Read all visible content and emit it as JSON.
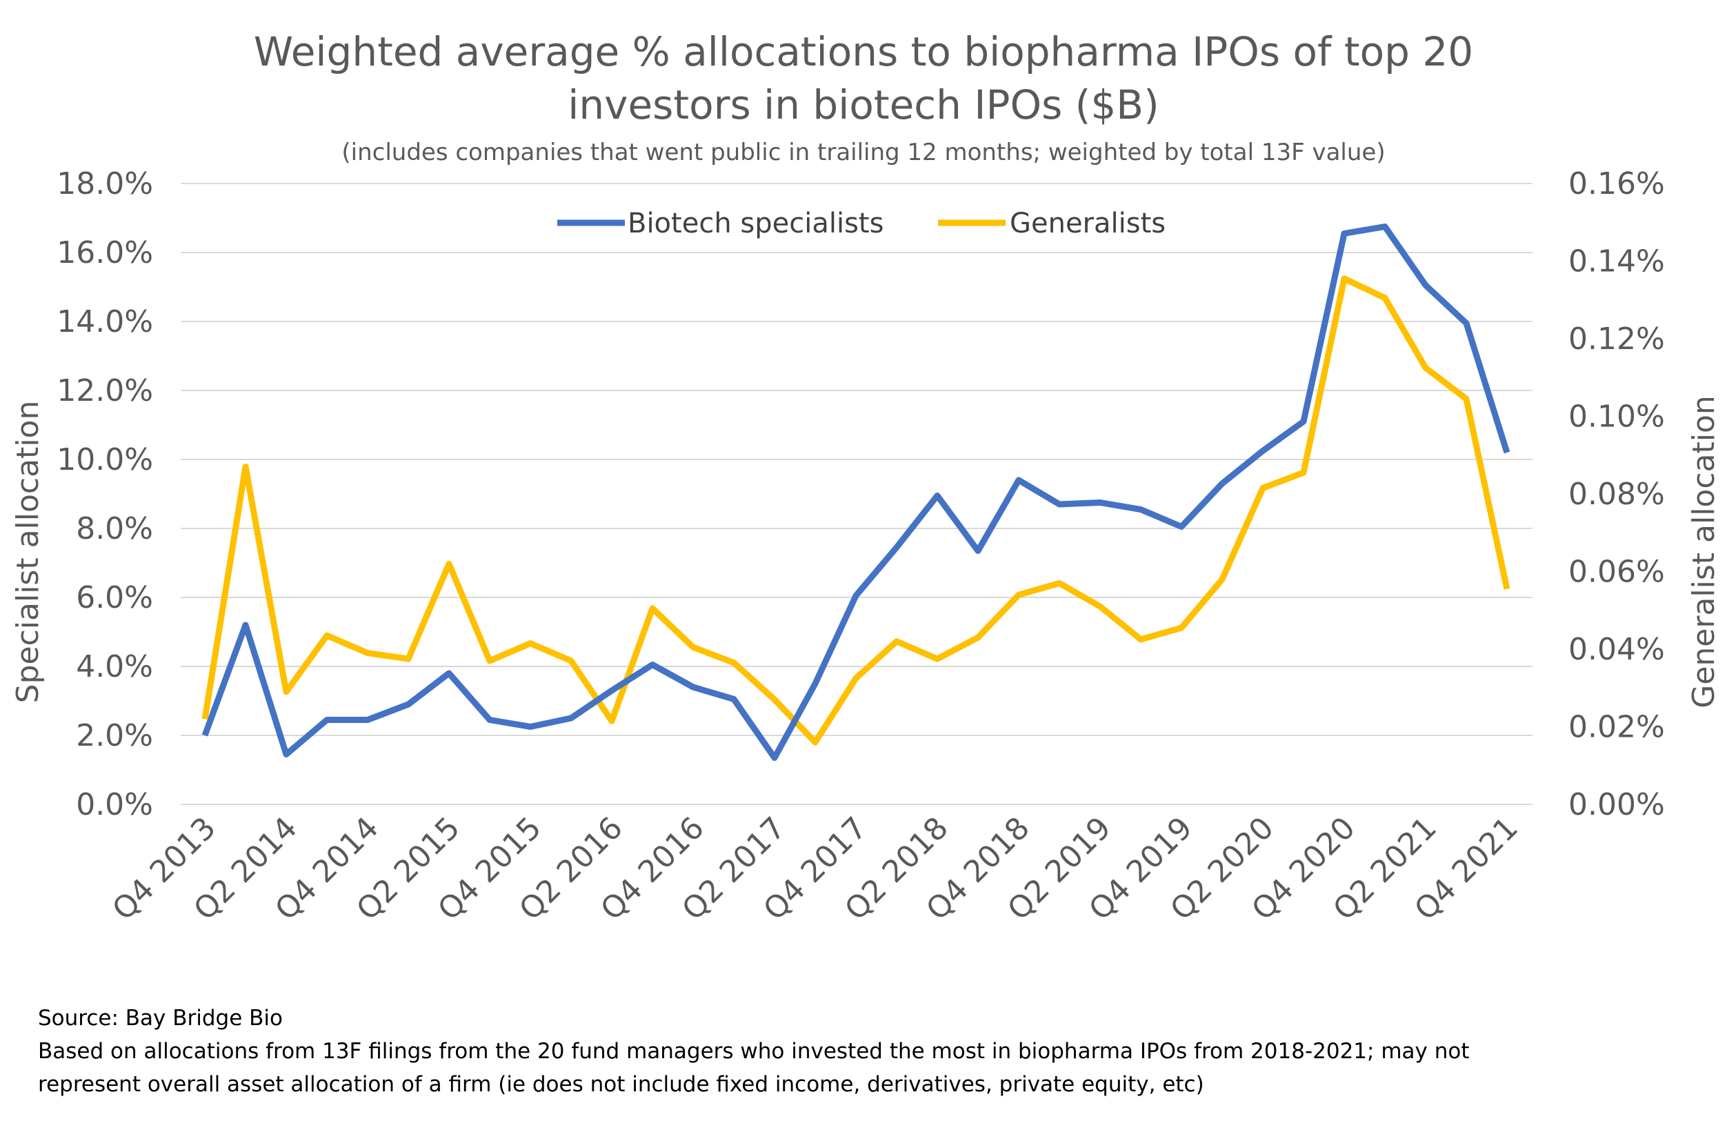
{
  "chart_data": {
    "type": "line",
    "title": "Weighted average % allocations to biopharma IPOs of top 20 investors in biotech IPOs ($B)",
    "title_lines": [
      "Weighted average % allocations to biopharma IPOs of top 20",
      "investors in biotech IPOs ($B)"
    ],
    "subtitle": "(includes companies that went public in trailing 12 months; weighted by total 13F value)",
    "ylabel": "Specialist allocation",
    "y2label": "Generalist allocation",
    "ylim": [
      0,
      18
    ],
    "y2lim": [
      0,
      0.16
    ],
    "yticks": [
      "0.0%",
      "2.0%",
      "4.0%",
      "6.0%",
      "8.0%",
      "10.0%",
      "12.0%",
      "14.0%",
      "16.0%",
      "18.0%"
    ],
    "y2ticks": [
      "0.00%",
      "0.02%",
      "0.04%",
      "0.06%",
      "0.08%",
      "0.10%",
      "0.12%",
      "0.14%",
      "0.16%"
    ],
    "categories": [
      "Q4 2013",
      "Q1 2014",
      "Q2 2014",
      "Q3 2014",
      "Q4 2014",
      "Q1 2015",
      "Q2 2015",
      "Q3 2015",
      "Q4 2015",
      "Q1 2016",
      "Q2 2016",
      "Q3 2016",
      "Q4 2016",
      "Q1 2017",
      "Q2 2017",
      "Q3 2017",
      "Q4 2017",
      "Q1 2018",
      "Q2 2018",
      "Q3 2018",
      "Q4 2018",
      "Q1 2019",
      "Q2 2019",
      "Q3 2019",
      "Q4 2019",
      "Q1 2020",
      "Q2 2020",
      "Q3 2020",
      "Q4 2020",
      "Q1 2021",
      "Q2 2021",
      "Q3 2021",
      "Q4 2021"
    ],
    "xtick_labels": [
      "Q4 2013",
      "Q2 2014",
      "Q4 2014",
      "Q2 2015",
      "Q4 2015",
      "Q2 2016",
      "Q4 2016",
      "Q2 2017",
      "Q4 2017",
      "Q2 2018",
      "Q4 2018",
      "Q2 2019",
      "Q4 2019",
      "Q2 2020",
      "Q4 2020",
      "Q2 2021",
      "Q4 2021"
    ],
    "series": [
      {
        "name": "Biotech specialists",
        "axis": "left",
        "color": "#4472C4",
        "values": [
          2.0,
          5.2,
          1.45,
          2.45,
          2.45,
          2.9,
          3.8,
          2.45,
          2.25,
          2.5,
          3.3,
          4.05,
          3.4,
          3.05,
          1.35,
          3.5,
          6.05,
          7.45,
          8.95,
          7.35,
          9.4,
          8.7,
          8.75,
          8.55,
          8.05,
          9.3,
          10.25,
          11.1,
          16.55,
          16.75,
          15.05,
          13.95,
          10.2
        ]
      },
      {
        "name": "Generalists",
        "axis": "right",
        "color": "#FFC000",
        "values": [
          0.022,
          0.087,
          0.029,
          0.0435,
          0.039,
          0.0375,
          0.062,
          0.037,
          0.0415,
          0.037,
          0.0215,
          0.0505,
          0.0405,
          0.0365,
          0.027,
          0.016,
          0.0325,
          0.042,
          0.0375,
          0.043,
          0.054,
          0.057,
          0.051,
          0.0425,
          0.0455,
          0.058,
          0.0815,
          0.0855,
          0.1355,
          0.1305,
          0.1125,
          0.1045,
          0.0555
        ]
      }
    ],
    "legend": "top-center",
    "grid": true
  },
  "footnotes": {
    "source": "Source: Bay Bridge Bio",
    "note": "Based on allocations from 13F filings from the 20 fund managers who invested the most in biopharma IPOs from 2018-2021; may not represent overall asset allocation of a firm (ie does not include fixed income, derivatives, private equity, etc)"
  }
}
